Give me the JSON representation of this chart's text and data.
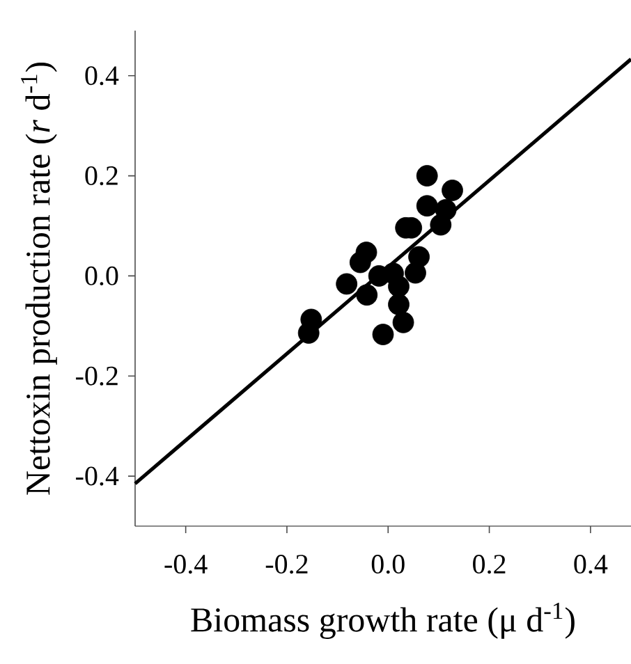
{
  "chart_data": {
    "type": "scatter",
    "xlabel": "Biomass growth rate (μ d$^{-1}$)",
    "ylabel": "Nettoxin production rate (*r* d$^{-1}$)",
    "xlim": [
      -0.5,
      0.48
    ],
    "ylim": [
      -0.5,
      0.49
    ],
    "xticks": [
      -0.4,
      -0.2,
      {
        "value": 0,
        "label": "0.0"
      },
      0.2,
      0.4
    ],
    "yticks": [
      -0.4,
      -0.2,
      {
        "value": 0,
        "label": "0.0"
      },
      0.2,
      0.4
    ],
    "grid": false,
    "series": [
      {
        "type": "scatter",
        "color": "#000000",
        "marker": "circle",
        "x": [
          0.077,
          0.127,
          0.077,
          0.114,
          0.104,
          0.035,
          0.046,
          -0.043,
          -0.055,
          0.061,
          0.054,
          -0.082,
          -0.018,
          0.01,
          0.021,
          -0.042,
          0.021,
          0.03,
          -0.01,
          -0.152,
          -0.157
        ],
        "values": [
          0.2,
          0.171,
          0.14,
          0.132,
          0.102,
          0.096,
          0.096,
          0.047,
          0.027,
          0.038,
          0.006,
          -0.016,
          0.0,
          0.005,
          -0.021,
          -0.038,
          -0.057,
          -0.093,
          -0.117,
          -0.087,
          -0.114
        ]
      },
      {
        "type": "line",
        "color": "#000000",
        "x": [
          -0.5,
          0.48
        ],
        "values": [
          -0.415,
          0.433
        ]
      }
    ]
  }
}
